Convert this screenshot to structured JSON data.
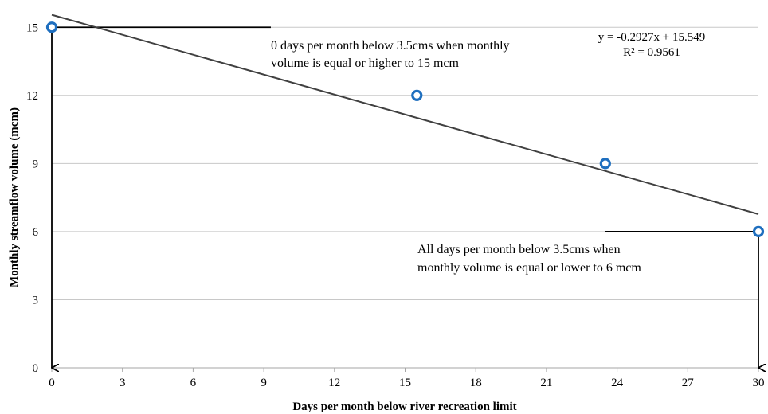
{
  "chart_data": {
    "type": "scatter",
    "title": "",
    "xlabel": "Days per month below river recreation limit",
    "ylabel": "Monthly  streamflow volume (mcm)",
    "xlim": [
      0,
      30
    ],
    "ylim": [
      0,
      15.5
    ],
    "x_ticks": [
      0,
      3,
      6,
      9,
      12,
      15,
      18,
      21,
      24,
      27,
      30
    ],
    "y_ticks": [
      0,
      3,
      6,
      9,
      12,
      15
    ],
    "grid": "horizontal",
    "legend": "none",
    "series": [
      {
        "x": [
          0,
          15.5,
          23.5,
          30
        ],
        "y": [
          15,
          12,
          9,
          6
        ],
        "marker": "hollow-circle",
        "color": "#1f6fbf"
      }
    ],
    "trendline": {
      "type": "linear",
      "slope": -0.2927,
      "intercept": 15.549,
      "equation": "y = -0.2927x + 15.549",
      "r2": "R² = 0.9561",
      "color": "#404040"
    },
    "guides": [
      {
        "from": [
          0,
          15
        ],
        "to": [
          9.3,
          15
        ]
      },
      {
        "from": [
          0,
          15
        ],
        "to": [
          0,
          0
        ],
        "arrow": true
      },
      {
        "from": [
          23.5,
          6
        ],
        "to": [
          30,
          6
        ]
      },
      {
        "from": [
          30,
          6
        ],
        "to": [
          30,
          0
        ],
        "arrow": true
      }
    ],
    "annotations": [
      {
        "lines": [
          "0 days per month below 3.5cms when monthly",
          "volume is equal or higher to 15 mcm"
        ]
      },
      {
        "lines": [
          "All days per month below 3.5cms when",
          "monthly volume is equal or lower to 6 mcm"
        ]
      }
    ]
  }
}
